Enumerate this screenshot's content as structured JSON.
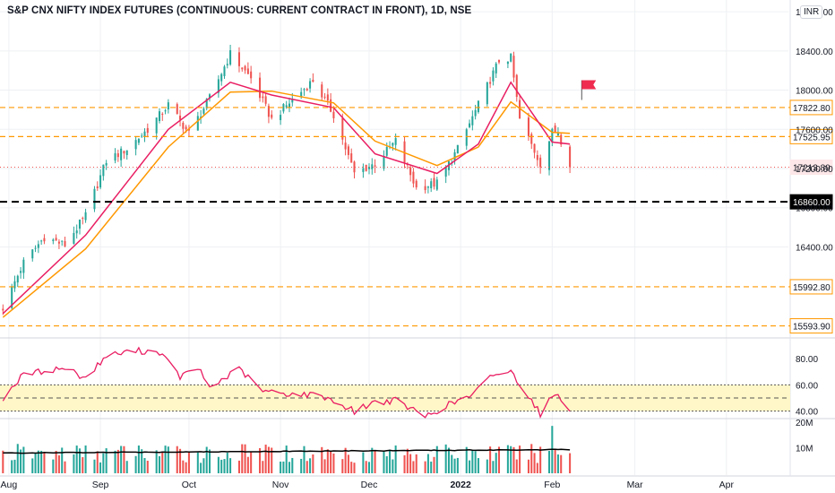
{
  "title": "S&P CNX NIFTY INDEX FUTURES (CONTINUOUS: CURRENT CONTRACT IN FRONT), 1D, NSE",
  "currency_badge": "INR",
  "colors": {
    "up": "#26a69a",
    "down": "#ef5350",
    "ema_fast": "#e91e63",
    "ema_slow": "#ff9800",
    "level_orange": "#ff9800",
    "level_black": "#000000",
    "rsi_line": "#e91e63",
    "rsi_band": "#fff7c8",
    "volume_ma": "#000000",
    "grid": "#eef0f3",
    "axis_text": "#131722",
    "flag": "#ef2b4f"
  },
  "chart_data": [
    {
      "type": "candlestick",
      "name": "price",
      "x_range": [
        "2021-07-29",
        "2022-04-22"
      ],
      "ylim": [
        15480,
        18920
      ],
      "y_ticks": [
        16400.0,
        16800.0,
        17200.0,
        17600.0,
        18000.0,
        18400.0,
        18800.0
      ],
      "y_tick_labels": [
        "16400.00",
        "16800.00",
        "17200.00",
        "17600.00",
        "18000.00",
        "18400.00",
        "18800.00"
      ],
      "x_tick_labels": [
        "Aug",
        "Sep",
        "Oct",
        "Nov",
        "Dec",
        "2022",
        "Feb",
        "Mar",
        "Apr"
      ],
      "grid": true,
      "horizontal_levels": [
        {
          "label": "17822.80",
          "value": 17822.8,
          "style": "dashed",
          "color": "orange"
        },
        {
          "label": "17525.95",
          "value": 17525.95,
          "style": "dashed",
          "color": "orange"
        },
        {
          "label": "17213.80",
          "value": 17213.8,
          "style": "dotted",
          "color": "red",
          "kind": "last price"
        },
        {
          "label": "16860.00",
          "value": 16860.0,
          "style": "dashed",
          "color": "black"
        },
        {
          "label": "15992.80",
          "value": 15992.8,
          "style": "dashed",
          "color": "orange"
        },
        {
          "label": "15593.90",
          "value": 15593.9,
          "style": "dashed",
          "color": "orange"
        }
      ],
      "close_path": [
        [
          "2021-07-30",
          15780
        ],
        [
          "2021-08-06",
          16240
        ],
        [
          "2021-08-13",
          16500
        ],
        [
          "2021-08-20",
          16420
        ],
        [
          "2021-08-27",
          16720
        ],
        [
          "2021-09-03",
          17280
        ],
        [
          "2021-09-10",
          17400
        ],
        [
          "2021-09-17",
          17600
        ],
        [
          "2021-09-24",
          17850
        ],
        [
          "2021-10-01",
          17560
        ],
        [
          "2021-10-08",
          17920
        ],
        [
          "2021-10-15",
          18370
        ],
        [
          "2021-10-22",
          18120
        ],
        [
          "2021-10-29",
          17700
        ],
        [
          "2021-11-05",
          17900
        ],
        [
          "2021-11-12",
          18100
        ],
        [
          "2021-11-19",
          17750
        ],
        [
          "2021-11-26",
          17150
        ],
        [
          "2021-12-03",
          17250
        ],
        [
          "2021-12-10",
          17480
        ],
        [
          "2021-12-17",
          17000
        ],
        [
          "2021-12-24",
          17050
        ],
        [
          "2021-12-31",
          17400
        ],
        [
          "2022-01-07",
          17850
        ],
        [
          "2022-01-14",
          18300
        ],
        [
          "2022-01-18",
          18330
        ],
        [
          "2022-01-21",
          17700
        ],
        [
          "2022-01-28",
          17250
        ],
        [
          "2022-02-01",
          17570
        ],
        [
          "2022-02-03",
          17580
        ],
        [
          "2022-02-07",
          17214
        ]
      ],
      "ema_fast_path": [
        [
          "2021-07-30",
          15720
        ],
        [
          "2021-08-27",
          16520
        ],
        [
          "2021-09-24",
          17600
        ],
        [
          "2021-10-15",
          18080
        ],
        [
          "2021-10-29",
          17950
        ],
        [
          "2021-11-19",
          17820
        ],
        [
          "2021-12-03",
          17350
        ],
        [
          "2021-12-24",
          17150
        ],
        [
          "2022-01-07",
          17450
        ],
        [
          "2022-01-18",
          18080
        ],
        [
          "2022-02-01",
          17470
        ],
        [
          "2022-02-07",
          17450
        ]
      ],
      "ema_slow_path": [
        [
          "2021-07-30",
          15680
        ],
        [
          "2021-08-27",
          16380
        ],
        [
          "2021-09-24",
          17420
        ],
        [
          "2021-10-15",
          17980
        ],
        [
          "2021-10-29",
          17990
        ],
        [
          "2021-11-19",
          17870
        ],
        [
          "2021-12-03",
          17480
        ],
        [
          "2021-12-24",
          17230
        ],
        [
          "2022-01-07",
          17420
        ],
        [
          "2022-01-18",
          17880
        ],
        [
          "2022-02-01",
          17570
        ],
        [
          "2022-02-07",
          17560
        ]
      ]
    },
    {
      "type": "line",
      "name": "rsi",
      "ylim": [
        35,
        95
      ],
      "y_ticks": [
        40.0,
        60.0,
        80.0
      ],
      "y_tick_labels": [
        "40.00",
        "60.00",
        "80.00"
      ],
      "band": [
        40,
        60
      ],
      "midline": 50,
      "path": [
        [
          "2021-07-30",
          50
        ],
        [
          "2021-08-06",
          68
        ],
        [
          "2021-08-20",
          73
        ],
        [
          "2021-08-27",
          65
        ],
        [
          "2021-09-03",
          82
        ],
        [
          "2021-09-13",
          86
        ],
        [
          "2021-09-21",
          85
        ],
        [
          "2021-09-28",
          66
        ],
        [
          "2021-10-04",
          73
        ],
        [
          "2021-10-08",
          58
        ],
        [
          "2021-10-18",
          72
        ],
        [
          "2021-10-26",
          55
        ],
        [
          "2021-11-05",
          53
        ],
        [
          "2021-11-15",
          52
        ],
        [
          "2021-11-26",
          40
        ],
        [
          "2021-12-03",
          47
        ],
        [
          "2021-12-10",
          48
        ],
        [
          "2021-12-20",
          36
        ],
        [
          "2021-12-28",
          45
        ],
        [
          "2022-01-05",
          52
        ],
        [
          "2022-01-12",
          68
        ],
        [
          "2022-01-18",
          70
        ],
        [
          "2022-01-24",
          52
        ],
        [
          "2022-01-28",
          38
        ],
        [
          "2022-02-02",
          54
        ],
        [
          "2022-02-07",
          42
        ]
      ]
    },
    {
      "type": "bar",
      "name": "volume",
      "ylim": [
        0,
        21000000
      ],
      "y_ticks": [
        10000000,
        20000000
      ],
      "y_tick_labels": [
        "10M",
        "20M"
      ],
      "volume_ma_level": 8600000,
      "peak_bar": [
        "2022-02-03",
        18500000
      ]
    }
  ]
}
